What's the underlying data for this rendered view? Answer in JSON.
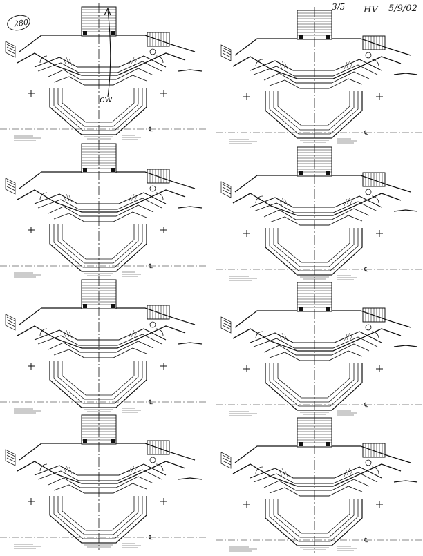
{
  "annotations": {
    "sheet_number": "280",
    "fraction": "3/5",
    "initials": "HV",
    "date": "5/9/02",
    "direction_label": "cw"
  },
  "legend": {
    "centerline_symbol": "℄"
  },
  "panels": [
    {
      "id": "plan-1"
    },
    {
      "id": "plan-2"
    },
    {
      "id": "plan-3"
    },
    {
      "id": "plan-4"
    },
    {
      "id": "plan-5"
    },
    {
      "id": "plan-6"
    },
    {
      "id": "plan-7"
    },
    {
      "id": "plan-8"
    }
  ],
  "colors": {
    "ink": "#111111",
    "paper": "#ffffff"
  }
}
